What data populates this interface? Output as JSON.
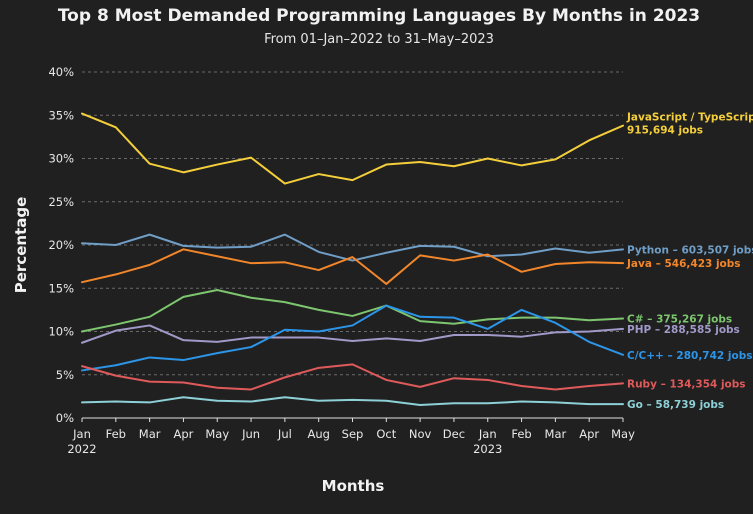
{
  "chart_data": {
    "type": "line",
    "title": "Top 8 Most Demanded Programming Languages By Months in 2023",
    "subtitle": "From 01–Jan–2022 to 31–May–2023",
    "xlabel": "Months",
    "ylabel": "Percentage",
    "ylim": [
      0,
      40
    ],
    "yticks": [
      0,
      5,
      10,
      15,
      20,
      25,
      30,
      35,
      40
    ],
    "ytick_labels": [
      "0%",
      "5%",
      "10%",
      "15%",
      "20%",
      "25%",
      "30%",
      "35%",
      "40%"
    ],
    "grid": true,
    "categories": [
      "Jan",
      "Feb",
      "Mar",
      "Apr",
      "May",
      "Jun",
      "Jul",
      "Aug",
      "Sep",
      "Oct",
      "Nov",
      "Dec",
      "Jan",
      "Feb",
      "Mar",
      "Apr",
      "May"
    ],
    "year_labels": [
      {
        "index": 0,
        "text": "2022"
      },
      {
        "index": 12,
        "text": "2023"
      }
    ],
    "series": [
      {
        "name": "JavaScript / TypeScript",
        "label_line1": "JavaScript / TypeScript",
        "label_line2": "915,694 jobs",
        "color": "#f4cf3b",
        "values": [
          35.2,
          33.6,
          29.4,
          28.4,
          29.3,
          30.1,
          27.1,
          28.2,
          27.5,
          29.3,
          29.6,
          29.1,
          30.0,
          29.2,
          29.9,
          32.1,
          33.8
        ]
      },
      {
        "name": "Python",
        "label_line1": "Python – 603,507 jobs",
        "color": "#6f9ec7",
        "values": [
          20.2,
          20.0,
          21.2,
          19.9,
          19.7,
          19.8,
          21.2,
          19.2,
          18.2,
          19.1,
          19.9,
          19.8,
          18.7,
          18.9,
          19.6,
          19.1,
          19.5
        ]
      },
      {
        "name": "Java",
        "label_line1": "Java – 546,423 jobs",
        "color": "#f2862b",
        "values": [
          15.7,
          16.6,
          17.7,
          19.5,
          18.7,
          17.9,
          18.0,
          17.1,
          18.6,
          15.5,
          18.8,
          18.2,
          18.9,
          16.9,
          17.8,
          18.0,
          17.9
        ]
      },
      {
        "name": "C#",
        "label_line1": "C# – 375,267 jobs",
        "color": "#7dc66f",
        "values": [
          10.0,
          10.8,
          11.7,
          14.0,
          14.8,
          13.9,
          13.4,
          12.5,
          11.8,
          13.0,
          11.2,
          10.9,
          11.4,
          11.6,
          11.6,
          11.3,
          11.5
        ]
      },
      {
        "name": "PHP",
        "label_line1": "PHP – 288,585 jobs",
        "color": "#a19ac9",
        "values": [
          8.7,
          10.1,
          10.7,
          9.0,
          8.8,
          9.3,
          9.3,
          9.3,
          8.9,
          9.2,
          8.9,
          9.6,
          9.6,
          9.4,
          9.9,
          10.0,
          10.3
        ]
      },
      {
        "name": "C/C++",
        "label_line1": "C/C++ – 280,742 jobs",
        "color": "#2c95e8",
        "values": [
          5.5,
          6.1,
          7.0,
          6.7,
          7.5,
          8.2,
          10.2,
          10.0,
          10.7,
          13.0,
          11.7,
          11.6,
          10.3,
          12.5,
          11.0,
          8.8,
          7.3
        ]
      },
      {
        "name": "Ruby",
        "label_line1": "Ruby – 134,354 jobs",
        "color": "#df5a5a",
        "values": [
          6.0,
          4.9,
          4.2,
          4.1,
          3.5,
          3.3,
          4.7,
          5.8,
          6.2,
          4.4,
          3.6,
          4.6,
          4.4,
          3.7,
          3.3,
          3.7,
          4.0
        ]
      },
      {
        "name": "Go",
        "label_line1": "Go – 58,739 jobs",
        "color": "#8dd0d6",
        "values": [
          1.8,
          1.9,
          1.8,
          2.4,
          2.0,
          1.9,
          2.4,
          2.0,
          2.1,
          2.0,
          1.5,
          1.7,
          1.7,
          1.9,
          1.8,
          1.6,
          1.6
        ]
      }
    ]
  }
}
